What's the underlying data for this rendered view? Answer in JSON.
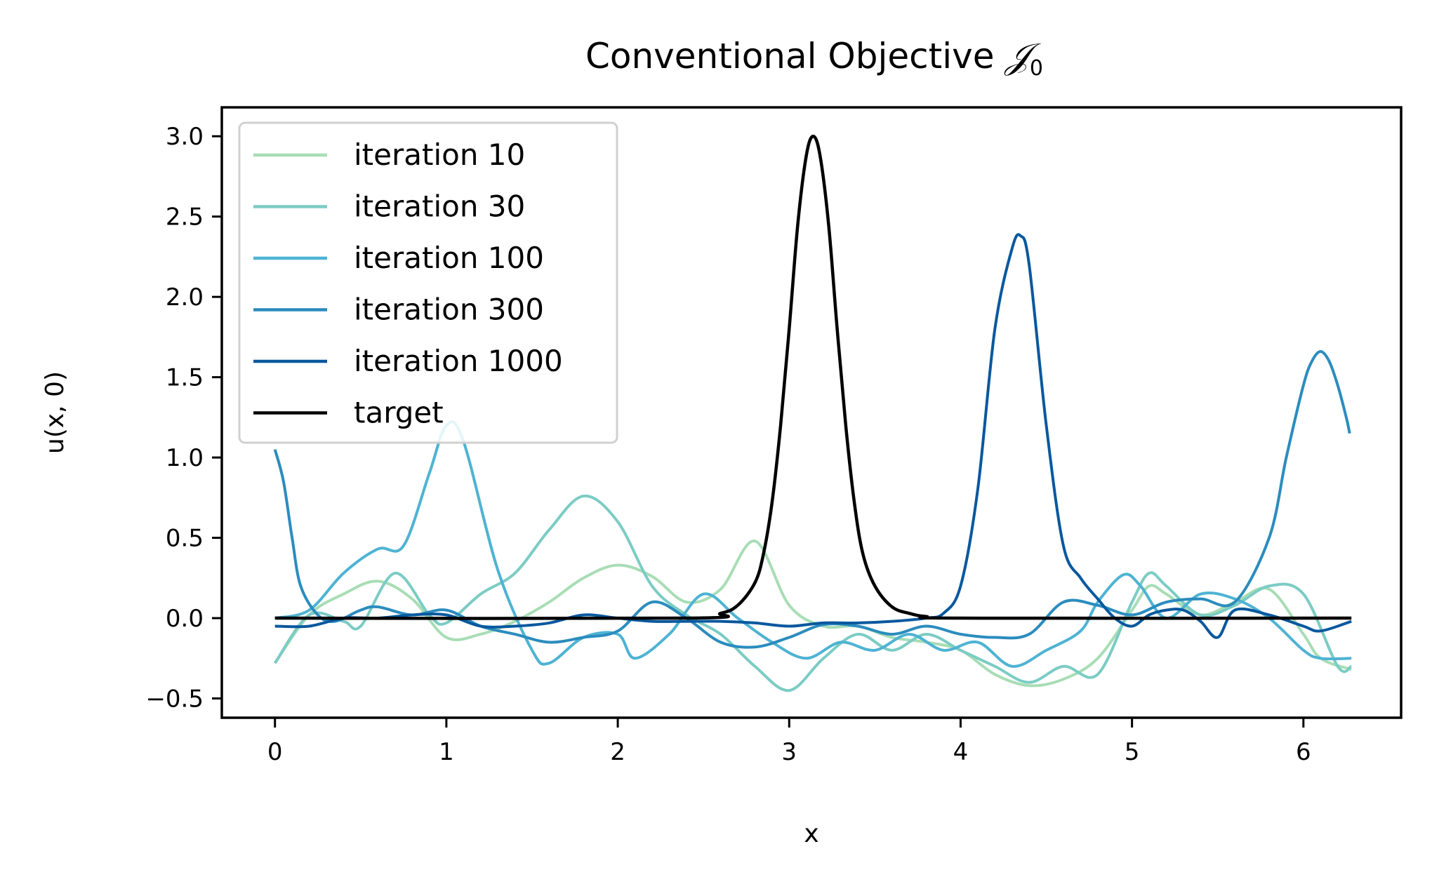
{
  "chart_data": {
    "type": "line",
    "title": "Conventional Objective ",
    "title_symbol": "𝒥",
    "title_subscript": "0",
    "xlabel": "x",
    "ylabel": "u(x, 0)",
    "xlim": [
      -0.31,
      6.57
    ],
    "ylim": [
      -0.62,
      3.18
    ],
    "xticks": [
      0,
      1,
      2,
      3,
      4,
      5,
      6
    ],
    "xtick_labels": [
      "0",
      "1",
      "2",
      "3",
      "4",
      "5",
      "6"
    ],
    "yticks": [
      -0.5,
      0.0,
      0.5,
      1.0,
      1.5,
      2.0,
      2.5,
      3.0
    ],
    "ytick_labels": [
      "−0.5",
      "0.0",
      "0.5",
      "1.0",
      "1.5",
      "2.0",
      "2.5",
      "3.0"
    ],
    "grid": false,
    "legend_position": "top-left",
    "series": [
      {
        "name": "iteration 10",
        "color": "#a8ddb5",
        "x": [
          0,
          0.2,
          0.4,
          0.6,
          0.8,
          1.0,
          1.2,
          1.4,
          1.6,
          1.8,
          2.0,
          2.2,
          2.4,
          2.6,
          2.8,
          3.0,
          3.2,
          3.4,
          3.6,
          3.8,
          4.0,
          4.2,
          4.4,
          4.6,
          4.8,
          5.0,
          5.1,
          5.2,
          5.4,
          5.6,
          5.8,
          6.0,
          6.1,
          6.28
        ],
        "y": [
          -0.28,
          0.02,
          0.15,
          0.23,
          0.12,
          -0.12,
          -0.1,
          -0.02,
          0.1,
          0.25,
          0.33,
          0.26,
          0.1,
          0.18,
          0.48,
          0.08,
          -0.05,
          -0.05,
          -0.12,
          -0.15,
          -0.2,
          -0.35,
          -0.42,
          -0.38,
          -0.25,
          0.05,
          0.2,
          0.15,
          0.02,
          0.1,
          0.18,
          -0.1,
          -0.25,
          -0.32
        ]
      },
      {
        "name": "iteration 30",
        "color": "#7bccc4",
        "x": [
          0,
          0.2,
          0.4,
          0.5,
          0.7,
          0.9,
          1.0,
          1.2,
          1.4,
          1.6,
          1.8,
          2.0,
          2.2,
          2.4,
          2.6,
          2.8,
          3.0,
          3.2,
          3.4,
          3.6,
          3.8,
          4.0,
          4.2,
          4.4,
          4.6,
          4.8,
          5.0,
          5.1,
          5.2,
          5.4,
          5.6,
          5.8,
          6.0,
          6.2,
          6.28
        ],
        "y": [
          -0.28,
          0.02,
          -0.02,
          -0.05,
          0.28,
          0.02,
          -0.03,
          0.15,
          0.28,
          0.55,
          0.76,
          0.6,
          0.2,
          0.02,
          -0.1,
          -0.3,
          -0.45,
          -0.25,
          -0.1,
          -0.2,
          -0.1,
          -0.2,
          -0.3,
          -0.4,
          -0.3,
          -0.35,
          0.1,
          0.28,
          0.2,
          0.02,
          0.08,
          0.2,
          0.15,
          -0.3,
          -0.3
        ]
      },
      {
        "name": "iteration 100",
        "color": "#4eb3d3",
        "x": [
          0,
          0.2,
          0.4,
          0.6,
          0.75,
          0.9,
          1.0,
          1.1,
          1.3,
          1.5,
          1.6,
          1.8,
          2.0,
          2.1,
          2.3,
          2.5,
          2.7,
          2.9,
          3.1,
          3.3,
          3.5,
          3.7,
          3.9,
          4.1,
          4.3,
          4.5,
          4.7,
          4.8,
          4.95,
          5.05,
          5.2,
          5.4,
          5.6,
          5.8,
          6.0,
          6.1,
          6.28
        ],
        "y": [
          0.0,
          0.05,
          0.28,
          0.43,
          0.45,
          0.9,
          1.2,
          1.1,
          0.3,
          -0.2,
          -0.28,
          -0.12,
          -0.1,
          -0.25,
          -0.1,
          0.15,
          0.0,
          -0.15,
          -0.25,
          -0.15,
          -0.2,
          -0.1,
          -0.2,
          -0.15,
          -0.3,
          -0.2,
          -0.08,
          0.1,
          0.27,
          0.2,
          0.0,
          0.15,
          0.12,
          0.0,
          -0.2,
          -0.25,
          -0.25
        ]
      },
      {
        "name": "iteration 300",
        "color": "#2b8cbe",
        "x": [
          0,
          0.05,
          0.1,
          0.15,
          0.25,
          0.35,
          0.5,
          0.6,
          0.8,
          1.0,
          1.2,
          1.4,
          1.6,
          1.8,
          2.0,
          2.2,
          2.4,
          2.6,
          2.8,
          3.0,
          3.2,
          3.4,
          3.6,
          3.8,
          4.0,
          4.2,
          4.4,
          4.6,
          4.8,
          5.0,
          5.2,
          5.4,
          5.6,
          5.8,
          5.9,
          6.0,
          6.05,
          6.1,
          6.15,
          6.2,
          6.25,
          6.27
        ],
        "y": [
          1.05,
          0.85,
          0.5,
          0.2,
          0.02,
          -0.02,
          0.05,
          0.07,
          0.02,
          0.05,
          -0.05,
          -0.1,
          -0.15,
          -0.12,
          -0.08,
          0.1,
          0.0,
          -0.15,
          -0.18,
          -0.12,
          -0.04,
          -0.05,
          -0.1,
          -0.05,
          -0.1,
          -0.12,
          -0.1,
          0.1,
          0.08,
          0.02,
          0.1,
          0.12,
          0.1,
          0.5,
          1.0,
          1.45,
          1.6,
          1.66,
          1.6,
          1.45,
          1.25,
          1.15
        ]
      },
      {
        "name": "iteration 1000",
        "color": "#08589e",
        "x": [
          0,
          0.2,
          0.4,
          0.6,
          0.8,
          1.0,
          1.2,
          1.4,
          1.6,
          1.8,
          2.0,
          2.2,
          2.4,
          2.6,
          2.8,
          3.0,
          3.2,
          3.4,
          3.6,
          3.8,
          3.9,
          4.0,
          4.1,
          4.2,
          4.3,
          4.35,
          4.4,
          4.5,
          4.6,
          4.7,
          4.8,
          4.9,
          5.0,
          5.1,
          5.2,
          5.3,
          5.4,
          5.5,
          5.6,
          5.8,
          6.0,
          6.1,
          6.28
        ],
        "y": [
          -0.05,
          -0.05,
          0.0,
          0.0,
          0.02,
          0.02,
          -0.05,
          -0.05,
          -0.03,
          0.02,
          0.0,
          -0.02,
          -0.02,
          -0.02,
          -0.03,
          -0.05,
          -0.03,
          -0.03,
          -0.02,
          0.0,
          0.03,
          0.2,
          0.8,
          1.8,
          2.3,
          2.38,
          2.2,
          1.2,
          0.45,
          0.25,
          0.12,
          0.0,
          -0.05,
          0.02,
          0.05,
          0.05,
          -0.02,
          -0.12,
          0.05,
          0.02,
          -0.05,
          -0.08,
          -0.02
        ]
      },
      {
        "name": "target",
        "color": "#000000",
        "x": [
          0,
          2.4,
          2.6,
          2.7,
          2.8,
          2.85,
          2.9,
          2.95,
          3.0,
          3.05,
          3.1,
          3.14,
          3.18,
          3.23,
          3.28,
          3.33,
          3.38,
          3.43,
          3.5,
          3.6,
          3.7,
          3.8,
          4.0,
          6.28
        ],
        "y": [
          0.0,
          0.0,
          0.03,
          0.08,
          0.22,
          0.4,
          0.72,
          1.2,
          1.8,
          2.45,
          2.88,
          3.0,
          2.88,
          2.45,
          1.8,
          1.2,
          0.72,
          0.4,
          0.2,
          0.07,
          0.03,
          0.01,
          0.0,
          0.0
        ]
      }
    ]
  }
}
